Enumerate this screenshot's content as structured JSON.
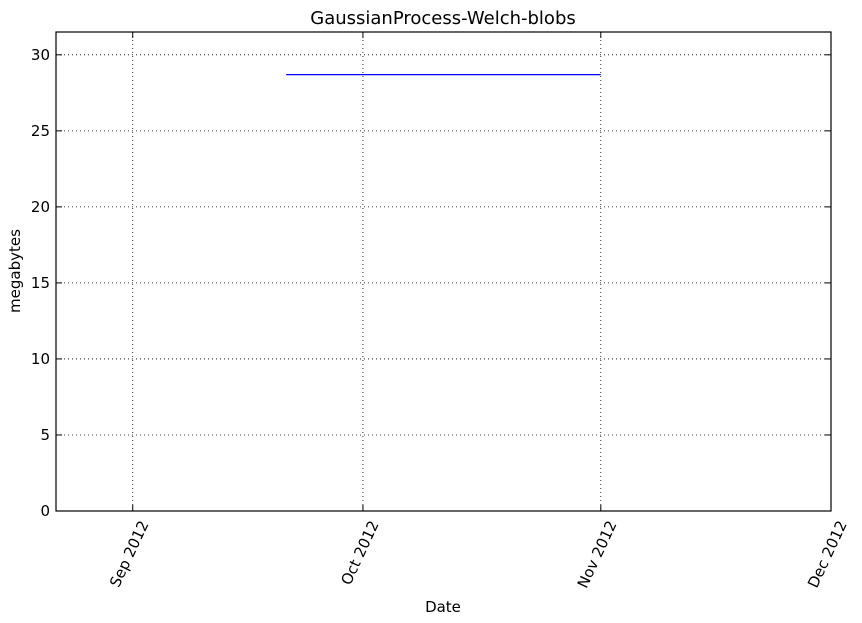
{
  "chart_data": {
    "type": "line",
    "title": "GaussianProcess-Welch-blobs",
    "xlabel": "Date",
    "ylabel": "megabytes",
    "x_axis_type": "date",
    "xlim": [
      "2012-08-22",
      "2012-12-01"
    ],
    "ylim": [
      0,
      31.5
    ],
    "x_ticks": [
      {
        "date": "2012-09-01",
        "label": "Sep 2012"
      },
      {
        "date": "2012-10-01",
        "label": "Oct 2012"
      },
      {
        "date": "2012-11-01",
        "label": "Nov 2012"
      },
      {
        "date": "2012-12-01",
        "label": "Dec 2012"
      }
    ],
    "y_ticks": [
      0,
      5,
      10,
      15,
      20,
      25,
      30
    ],
    "grid": true,
    "series": [
      {
        "color": "#0000ff",
        "points": [
          {
            "x": "2012-09-21",
            "y": 28.7
          },
          {
            "x": "2012-11-01",
            "y": 28.7
          }
        ]
      }
    ]
  }
}
